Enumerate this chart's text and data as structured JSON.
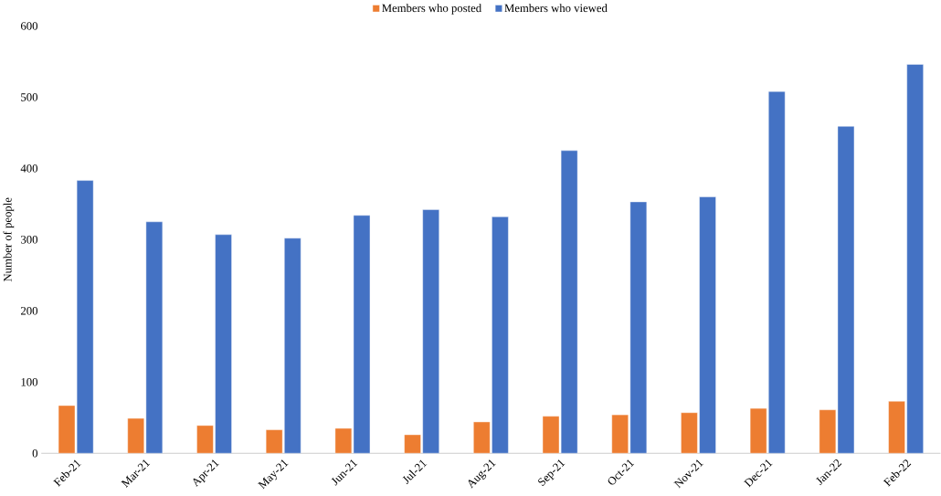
{
  "chart_data": {
    "type": "bar",
    "ylabel": "Number of people",
    "categories": [
      "Feb-21",
      "Mar-21",
      "Apr-21",
      "May-21",
      "Jun-21",
      "Jul-21",
      "Aug-21",
      "Sep-21",
      "Oct-21",
      "Nov-21",
      "Dec-21",
      "Jan-22",
      "Feb-22"
    ],
    "series": [
      {
        "name": "Members who posted",
        "color": "#ed7d31",
        "values": [
          67,
          49,
          39,
          33,
          35,
          26,
          44,
          52,
          54,
          57,
          63,
          61,
          73
        ]
      },
      {
        "name": "Members who viewed",
        "color": "#4472c4",
        "values": [
          383,
          325,
          307,
          302,
          334,
          342,
          332,
          425,
          353,
          360,
          508,
          459,
          546
        ]
      }
    ],
    "ylim": [
      0,
      600
    ],
    "yticks": [
      0,
      100,
      200,
      300,
      400,
      500,
      600
    ],
    "grid": false,
    "legend": "top"
  }
}
